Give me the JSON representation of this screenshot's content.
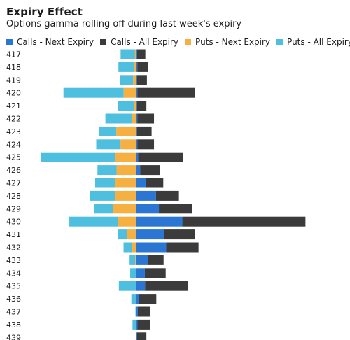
{
  "chart_data": {
    "type": "bar",
    "orientation": "horizontal",
    "stacked": true,
    "title": "Expiry Effect",
    "subtitle": "Options gamma rolling off during last week's expiry",
    "xlabel": "",
    "ylabel": "",
    "legend_position": "top",
    "grid": false,
    "categories": [
      "417",
      "418",
      "419",
      "420",
      "421",
      "422",
      "423",
      "424",
      "425",
      "426",
      "427",
      "428",
      "429",
      "430",
      "431",
      "432",
      "433",
      "434",
      "435",
      "436",
      "437",
      "438",
      "439"
    ],
    "series": [
      {
        "name": "Calls - Next Expiry",
        "color": "#2a76d2",
        "side": "right",
        "values": [
          0.5,
          0.8,
          0.5,
          0.8,
          0.5,
          0.8,
          0.5,
          0.8,
          1.5,
          3.5,
          8.7,
          18.7,
          21.5,
          44.0,
          26.8,
          28.5,
          11.0,
          8.0,
          8.2,
          2.0,
          1.3,
          1.0,
          0.5
        ]
      },
      {
        "name": "Calls - All Expiry",
        "color": "#3b3b3b",
        "side": "right",
        "values": [
          8,
          10,
          9.5,
          55,
          9,
          16,
          14,
          16,
          43,
          19,
          17,
          22,
          32,
          118,
          29,
          31,
          15,
          20,
          41,
          17,
          12,
          12,
          9
        ]
      },
      {
        "name": "Puts - Next Expiry",
        "color": "#f5b041",
        "side": "left",
        "values": [
          1.4,
          2.4,
          3.2,
          12.3,
          2.2,
          4.5,
          19.4,
          15.3,
          20.2,
          19.1,
          20.6,
          20.8,
          22.6,
          17.8,
          9.2,
          4.3,
          1.2,
          0.5,
          0.5,
          0.5,
          0.5,
          0.5,
          0.0
        ]
      },
      {
        "name": "Puts - All Expiry",
        "color": "#4fbfe0",
        "side": "left",
        "values": [
          13.8,
          14.9,
          12.5,
          57.7,
          15.7,
          25.3,
          16.3,
          23.3,
          71.4,
          18.3,
          19.0,
          23.8,
          18.0,
          46.6,
          8.4,
          8.1,
          5.4,
          5.5,
          16.4,
          4.4,
          0.5,
          3.3,
          0.0
        ]
      }
    ]
  }
}
